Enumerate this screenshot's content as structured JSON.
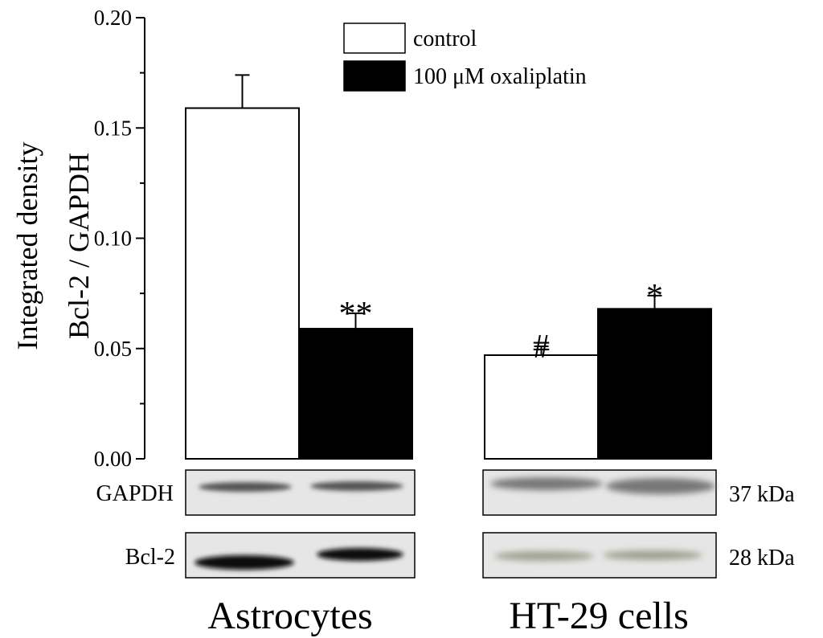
{
  "chart_data": {
    "type": "bar",
    "categories": [
      "Astrocytes",
      "HT-29 cells"
    ],
    "series": [
      {
        "name": "control",
        "values": [
          0.159,
          0.047
        ],
        "errors": [
          0.015,
          0.004
        ],
        "color": "#ffffff"
      },
      {
        "name": "100 μM oxaliplatin",
        "values": [
          0.059,
          0.068
        ],
        "errors": [
          0.007,
          0.006
        ],
        "color": "#000000"
      }
    ],
    "significance": [
      {
        "group": 0,
        "series": 1,
        "label": "**"
      },
      {
        "group": 1,
        "series": 0,
        "label": "#"
      },
      {
        "group": 1,
        "series": 1,
        "label": "*"
      }
    ],
    "ylabel_lines": [
      "Integrated density",
      "Bcl-2 / GAPDH"
    ],
    "ylim": [
      0,
      0.2
    ],
    "yticks": [
      "0.00",
      "0.05",
      "0.10",
      "0.15",
      "0.20"
    ],
    "legend_position": "top-center",
    "grid": false
  },
  "blots": {
    "rows": [
      {
        "label": "GAPDH",
        "size": "37 kDa"
      },
      {
        "label": "Bcl-2",
        "size": "28 kDa"
      }
    ],
    "groups": [
      "Astrocytes",
      "HT-29 cells"
    ],
    "bg_color": "#e6e6e6"
  }
}
